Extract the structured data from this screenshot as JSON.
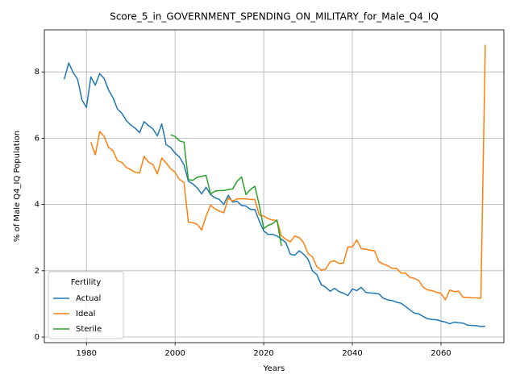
{
  "chart_data": {
    "type": "line",
    "title": "Score_5_in_GOVERNMENT_SPENDING_ON_MILITARY_for_Male_Q4_IQ",
    "xlabel": "Years",
    "ylabel": "% of Male Q4_IQ Population",
    "xlim": [
      1970.5,
      2074.2
    ],
    "ylim": [
      -0.17,
      9.27
    ],
    "xticks": [
      1980,
      2000,
      2020,
      2040,
      2060
    ],
    "yticks": [
      0,
      2,
      4,
      6,
      8
    ],
    "grid": true,
    "legend": {
      "title": "Fertility",
      "position": "lower left"
    },
    "series": [
      {
        "name": "Actual",
        "color": "#1f77b4",
        "x": [
          1975,
          1976,
          1977,
          1978,
          1979,
          1980,
          1981,
          1982,
          1983,
          1984,
          1985,
          1986,
          1987,
          1988,
          1989,
          1990,
          1991,
          1992,
          1993,
          1994,
          1995,
          1996,
          1997,
          1998,
          1999,
          2000,
          2001,
          2002,
          2003,
          2004,
          2005,
          2006,
          2007,
          2008,
          2009,
          2010,
          2011,
          2012,
          2013,
          2014,
          2015,
          2016,
          2017,
          2018,
          2019,
          2020,
          2021,
          2022,
          2023,
          2024,
          2025,
          2026,
          2027,
          2028,
          2029,
          2030,
          2031,
          2032,
          2033,
          2034,
          2035,
          2036,
          2037,
          2038,
          2039,
          2040,
          2041,
          2042,
          2043,
          2044,
          2045,
          2046,
          2047,
          2048,
          2049,
          2050,
          2051,
          2052,
          2053,
          2054,
          2055,
          2056,
          2057,
          2058,
          2059,
          2060,
          2061,
          2062,
          2063,
          2064,
          2065,
          2066,
          2067,
          2068,
          2069,
          2070
        ],
        "values": [
          7.78,
          8.27,
          7.98,
          7.78,
          7.15,
          6.93,
          7.85,
          7.6,
          7.95,
          7.8,
          7.45,
          7.22,
          6.88,
          6.75,
          6.53,
          6.4,
          6.3,
          6.17,
          6.5,
          6.38,
          6.28,
          6.07,
          6.43,
          5.8,
          5.72,
          5.55,
          5.43,
          5.2,
          4.7,
          4.62,
          4.5,
          4.32,
          4.52,
          4.3,
          4.2,
          4.15,
          4.0,
          4.28,
          4.07,
          4.1,
          3.97,
          3.95,
          3.85,
          3.85,
          3.5,
          3.2,
          3.1,
          3.1,
          3.05,
          2.95,
          2.85,
          2.5,
          2.47,
          2.6,
          2.5,
          2.35,
          2.0,
          1.88,
          1.58,
          1.5,
          1.38,
          1.47,
          1.37,
          1.32,
          1.25,
          1.45,
          1.4,
          1.5,
          1.35,
          1.33,
          1.32,
          1.3,
          1.17,
          1.12,
          1.1,
          1.05,
          1.02,
          0.92,
          0.82,
          0.72,
          0.7,
          0.62,
          0.55,
          0.53,
          0.52,
          0.48,
          0.45,
          0.4,
          0.45,
          0.43,
          0.42,
          0.36,
          0.35,
          0.34,
          0.32,
          0.32
        ]
      },
      {
        "name": "Ideal",
        "color": "#ff7f0e",
        "x": [
          1981,
          1982,
          1983,
          1984,
          1985,
          1986,
          1987,
          1988,
          1989,
          1990,
          1991,
          1992,
          1993,
          1994,
          1995,
          1996,
          1997,
          1998,
          1999,
          2000,
          2001,
          2002,
          2003,
          2004,
          2005,
          2006,
          2007,
          2008,
          2009,
          2010,
          2011,
          2012,
          2013,
          2014,
          2015,
          2016,
          2017,
          2018,
          2019,
          2020,
          2021,
          2022,
          2023,
          2024,
          2025,
          2026,
          2027,
          2028,
          2029,
          2030,
          2031,
          2032,
          2033,
          2034,
          2035,
          2036,
          2037,
          2038,
          2039,
          2040,
          2041,
          2042,
          2043,
          2044,
          2045,
          2046,
          2047,
          2048,
          2049,
          2050,
          2051,
          2052,
          2053,
          2054,
          2055,
          2056,
          2057,
          2058,
          2059,
          2060,
          2061,
          2062,
          2063,
          2064,
          2065,
          2066,
          2067,
          2068,
          2069,
          2070
        ],
        "values": [
          5.88,
          5.5,
          6.2,
          6.05,
          5.72,
          5.62,
          5.32,
          5.27,
          5.12,
          5.05,
          4.97,
          4.95,
          5.45,
          5.28,
          5.2,
          4.92,
          5.4,
          5.25,
          5.08,
          4.97,
          4.75,
          4.67,
          3.47,
          3.45,
          3.4,
          3.23,
          3.65,
          3.98,
          3.87,
          3.8,
          3.75,
          4.2,
          4.1,
          4.17,
          4.17,
          4.17,
          4.15,
          4.15,
          3.68,
          3.65,
          3.57,
          3.53,
          3.52,
          3.05,
          2.95,
          2.87,
          3.05,
          3.0,
          2.85,
          2.52,
          2.42,
          2.12,
          2.02,
          2.05,
          2.27,
          2.3,
          2.22,
          2.23,
          2.72,
          2.72,
          2.93,
          2.67,
          2.65,
          2.62,
          2.6,
          2.27,
          2.2,
          2.15,
          2.07,
          2.07,
          1.93,
          1.93,
          1.8,
          1.77,
          1.7,
          1.5,
          1.42,
          1.4,
          1.35,
          1.32,
          1.12,
          1.42,
          1.37,
          1.38,
          1.2,
          1.2,
          1.18,
          1.18,
          1.17,
          8.82
        ]
      },
      {
        "name": "Sterile",
        "color": "#2ca02c",
        "x": [
          1999,
          2000,
          2001,
          2002,
          2003,
          2004,
          2005,
          2006,
          2007,
          2008,
          2009,
          2010,
          2011,
          2012,
          2013,
          2014,
          2015,
          2016,
          2017,
          2018,
          2019,
          2020,
          2021,
          2022,
          2023,
          2024
        ],
        "values": [
          6.1,
          6.05,
          5.92,
          5.88,
          4.75,
          4.73,
          4.82,
          4.85,
          4.88,
          4.32,
          4.4,
          4.42,
          4.42,
          4.45,
          4.47,
          4.7,
          4.83,
          4.3,
          4.45,
          4.55,
          3.98,
          3.27,
          3.37,
          3.42,
          3.53,
          2.75
        ]
      }
    ]
  }
}
